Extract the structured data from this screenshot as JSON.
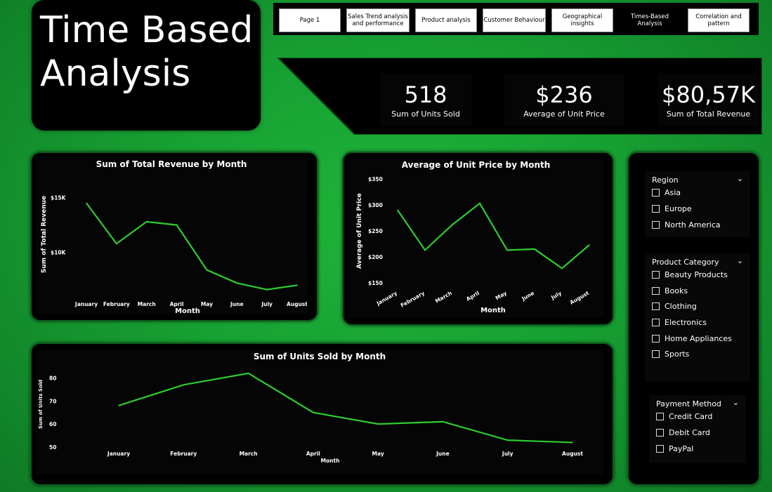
{
  "title": {
    "line1": "Time Based",
    "line2": "Analysis"
  },
  "tabs": [
    {
      "label": "Page 1"
    },
    {
      "label": "Sales Trend analysis and performance"
    },
    {
      "label": "Product analysis"
    },
    {
      "label": "Customer Behaviour"
    },
    {
      "label": "Geographical insights"
    },
    {
      "label": "Times-Based Analysis",
      "active": true
    },
    {
      "label": "Correlation and pattern"
    }
  ],
  "kpis": [
    {
      "value": "518",
      "label": "Sum of Units Sold"
    },
    {
      "value": "$236",
      "label": "Average of Unit Price"
    },
    {
      "value": "$80,57K",
      "label": "Sum of Total Revenue"
    }
  ],
  "colors": {
    "line": "#2ecc2e",
    "background": "#17a032",
    "panel": "#000000"
  },
  "chart_data": [
    {
      "type": "line",
      "title": "Sum of Total Revenue by Month",
      "xlabel": "Month",
      "ylabel": "Sum of Total Revenue",
      "categories": [
        "January",
        "February",
        "March",
        "April",
        "May",
        "June",
        "July",
        "August"
      ],
      "values": [
        14500,
        10800,
        12800,
        12500,
        8400,
        7200,
        6600,
        7000
      ],
      "yticks": [
        "$15K",
        "$10K"
      ],
      "ytick_values": [
        15000,
        10000
      ],
      "ylim": [
        6000,
        16000
      ]
    },
    {
      "type": "line",
      "title": "Average of Unit Price by Month",
      "xlabel": "Month",
      "ylabel": "Average of Unit Price",
      "categories": [
        "January",
        "February",
        "March",
        "April",
        "May",
        "June",
        "July",
        "August"
      ],
      "values": [
        290,
        213,
        262,
        303,
        213,
        215,
        178,
        223
      ],
      "yticks": [
        "$350",
        "$300",
        "$250",
        "$200",
        "$150"
      ],
      "ytick_values": [
        350,
        300,
        250,
        200,
        150
      ],
      "ylim": [
        150,
        350
      ]
    },
    {
      "type": "line",
      "title": "Sum of Units Sold by Month",
      "xlabel": "Month",
      "ylabel": "Sum of Units Sold",
      "categories": [
        "January",
        "February",
        "March",
        "April",
        "May",
        "June",
        "July",
        "August"
      ],
      "values": [
        68,
        77,
        82,
        65,
        60,
        61,
        53,
        52
      ],
      "yticks": [
        "80",
        "70",
        "60",
        "50"
      ],
      "ytick_values": [
        80,
        70,
        60,
        50
      ],
      "ylim": [
        50,
        85
      ]
    }
  ],
  "slicers": [
    {
      "name": "Region",
      "options": [
        "Asia",
        "Europe",
        "North America"
      ]
    },
    {
      "name": "Product Category",
      "options": [
        "Beauty Products",
        "Books",
        "Clothing",
        "Electronics",
        "Home Appliances",
        "Sports"
      ]
    },
    {
      "name": "Payment Method",
      "options": [
        "Credit Card",
        "Debit Card",
        "PayPal"
      ]
    }
  ]
}
